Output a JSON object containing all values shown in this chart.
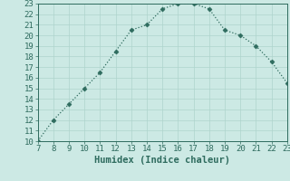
{
  "x": [
    7,
    8,
    9,
    10,
    11,
    12,
    13,
    14,
    15,
    16,
    17,
    18,
    19,
    20,
    21,
    22,
    23
  ],
  "y": [
    10,
    12,
    13.5,
    15,
    16.5,
    18.5,
    20.5,
    21,
    22.5,
    23,
    23,
    22.5,
    20.5,
    20,
    19,
    17.5,
    15.5
  ],
  "xlabel": "Humidex (Indice chaleur)",
  "xlim": [
    7,
    23
  ],
  "ylim": [
    10,
    23
  ],
  "xticks": [
    7,
    8,
    9,
    10,
    11,
    12,
    13,
    14,
    15,
    16,
    17,
    18,
    19,
    20,
    21,
    22,
    23
  ],
  "yticks": [
    10,
    11,
    12,
    13,
    14,
    15,
    16,
    17,
    18,
    19,
    20,
    21,
    22,
    23
  ],
  "line_color": "#2e6b5e",
  "bg_color": "#cce9e4",
  "grid_color": "#aed4cd",
  "marker_size": 2.5,
  "font_color": "#2e6b5e",
  "tick_fontsize": 6.5,
  "xlabel_fontsize": 7.5
}
